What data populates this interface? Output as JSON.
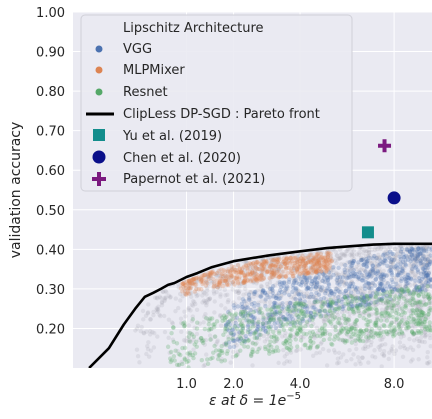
{
  "chart_data": {
    "type": "scatter",
    "title": "",
    "xlabel": "ε at δ = 1e",
    "xlabel_exponent": "−5",
    "ylabel": "validation accuracy",
    "xlim": [
      0,
      10
    ],
    "ylim": [
      0.1,
      1.0
    ],
    "x_scale": "sqrt",
    "grid": true,
    "legend_position": "top-left",
    "legend_title": "Lipschitz Architecture",
    "x_ticks": [
      {
        "value": 1.0,
        "label": "1.0"
      },
      {
        "value": 2.0,
        "label": "2.0"
      },
      {
        "value": 4.0,
        "label": "4.0"
      },
      {
        "value": 8.0,
        "label": "8.0"
      }
    ],
    "y_ticks": [
      {
        "value": 0.2,
        "label": "0.20"
      },
      {
        "value": 0.3,
        "label": "0.30"
      },
      {
        "value": 0.4,
        "label": "0.40"
      },
      {
        "value": 0.5,
        "label": "0.50"
      },
      {
        "value": 0.6,
        "label": "0.60"
      },
      {
        "value": 0.7,
        "label": "0.70"
      },
      {
        "value": 0.8,
        "label": "0.80"
      },
      {
        "value": 0.9,
        "label": "0.90"
      },
      {
        "value": 1.0,
        "label": "1.00"
      }
    ],
    "series": [
      {
        "name": "VGG",
        "kind": "cloud",
        "color": "#4c72b0",
        "x_range": [
          1.8,
          10
        ],
        "y_base": [
          0.18,
          0.36
        ],
        "y_span": 0.12
      },
      {
        "name": "MLPMixer",
        "kind": "cloud",
        "color": "#dd8452",
        "x_range": [
          0.9,
          5.2
        ],
        "y_base": [
          0.3,
          0.37
        ],
        "y_span": 0.05
      },
      {
        "name": "Resnet",
        "kind": "cloud",
        "color": "#55a868",
        "x_range": [
          0.7,
          10
        ],
        "y_base": [
          0.14,
          0.25
        ],
        "y_span": 0.12
      },
      {
        "name": "ClipLess DP-SGD : Pareto front",
        "kind": "line",
        "color": "#000000",
        "x": [
          0.02,
          0.1,
          0.2,
          0.3,
          0.4,
          0.5,
          0.6,
          0.7,
          0.8,
          1.0,
          1.2,
          1.5,
          2.0,
          2.5,
          3.0,
          4.0,
          5.0,
          6.0,
          7.0,
          8.0,
          9.0,
          10.0
        ],
        "y": [
          0.1,
          0.15,
          0.21,
          0.25,
          0.28,
          0.29,
          0.3,
          0.31,
          0.315,
          0.33,
          0.34,
          0.355,
          0.37,
          0.378,
          0.385,
          0.395,
          0.403,
          0.408,
          0.412,
          0.414,
          0.414,
          0.414
        ]
      },
      {
        "name": "Yu et al. (2019)",
        "kind": "marker",
        "marker": "square",
        "color": "#138d8c",
        "x": [
          6.75
        ],
        "y": [
          0.443
        ]
      },
      {
        "name": "Chen et al. (2020)",
        "kind": "marker",
        "marker": "circle",
        "color": "#0a0f8a",
        "x": [
          8.0
        ],
        "y": [
          0.53
        ]
      },
      {
        "name": "Papernot et al. (2021)",
        "kind": "marker",
        "marker": "plus",
        "color": "#7b1a7f",
        "x": [
          7.53
        ],
        "y": [
          0.662
        ]
      }
    ]
  }
}
